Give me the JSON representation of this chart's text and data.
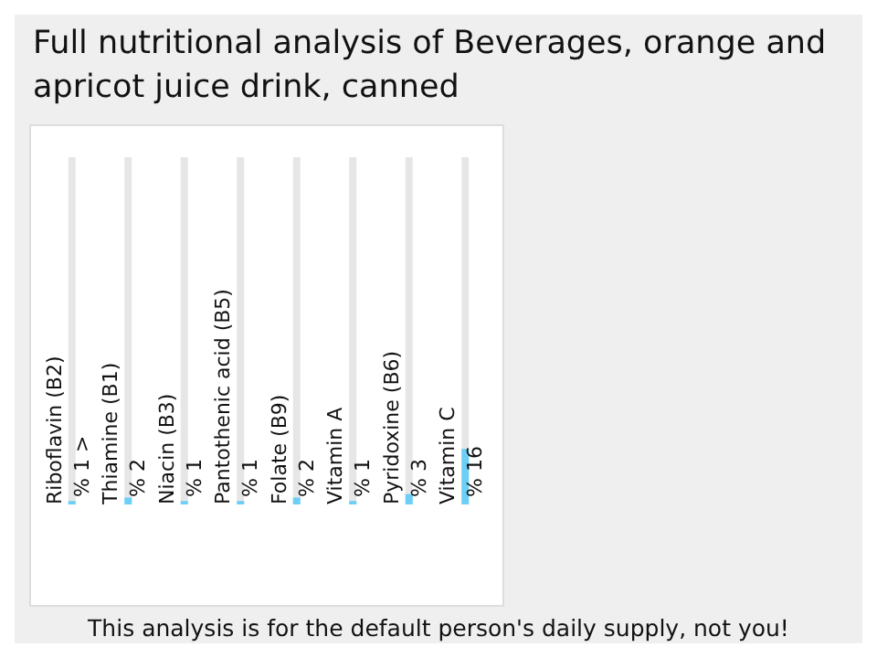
{
  "chart_data": {
    "type": "bar",
    "title": "Full nutritional analysis of Beverages, orange and apricot juice drink, canned",
    "categories": [
      "Riboflavin (B2)",
      "Thiamine (B1)",
      "Niacin (B3)",
      "Pantothenic acid (B5)",
      "Folate (B9)",
      "Vitamin A",
      "Pyridoxine (B6)",
      "Vitamin C"
    ],
    "values": [
      1,
      2,
      1,
      1,
      2,
      1,
      3,
      16
    ],
    "value_labels": [
      "% 1 >",
      "% 2",
      "% 1",
      "% 1",
      "% 2",
      "% 1",
      "% 3",
      "% 16"
    ],
    "color": "#6ccff6",
    "ylim": [
      0,
      100
    ],
    "tick_labels": "x",
    "annotations": [
      "This analysis is for the default person's daily supply, not you!"
    ]
  }
}
